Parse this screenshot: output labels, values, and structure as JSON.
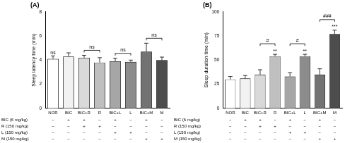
{
  "chart_data": [
    {
      "type": "bar",
      "title": "(A)",
      "ylabel": "Sleep latency time (min)",
      "categories": [
        "NOR",
        "BIC",
        "BIC+R",
        "R",
        "BIC+L",
        "L",
        "BIC+M",
        "M"
      ],
      "values": [
        4.1,
        4.3,
        4.2,
        3.8,
        3.9,
        3.85,
        4.7,
        4.0
      ],
      "errors": [
        0.25,
        0.3,
        0.2,
        0.4,
        0.25,
        0.15,
        0.7,
        0.25
      ],
      "colors": [
        "#ffffff",
        "#f2f2f2",
        "#d9d9d9",
        "#bfbfbf",
        "#a6a6a6",
        "#8c8c8c",
        "#737373",
        "#4d4d4d"
      ],
      "ylim": [
        0,
        8
      ],
      "yticks": [
        0,
        2,
        4,
        6,
        8
      ],
      "grid": false,
      "annotations": [
        {
          "text": "ns",
          "at": "NOR"
        },
        {
          "text": "ns",
          "from": "BIC+R",
          "to": "R"
        },
        {
          "text": "ns",
          "from": "BIC+L",
          "to": "L"
        },
        {
          "text": "ns",
          "from": "BIC+M",
          "to": "M"
        }
      ],
      "treatment_table": [
        {
          "label": "BIC (6 mg/kg)",
          "values": [
            "−",
            "+",
            "+",
            "−",
            "+",
            "−",
            "+",
            "−"
          ]
        },
        {
          "label": "R (150 mg/kg)",
          "values": [
            "−",
            "−",
            "+",
            "+",
            "−",
            "−",
            "−",
            "−"
          ]
        },
        {
          "label": "L (150 mg/kg)",
          "values": [
            "−",
            "−",
            "−",
            "−",
            "+",
            "+",
            "−",
            "−"
          ]
        },
        {
          "label": "M (150 mg/kg)",
          "values": [
            "−",
            "−",
            "−",
            "−",
            "−",
            "−",
            "+",
            "+"
          ]
        }
      ]
    },
    {
      "type": "bar",
      "title": "(B)",
      "ylabel": "Sleep duration time (min)",
      "categories": [
        "NOR",
        "BIC",
        "BIC+R",
        "R",
        "BIC+L",
        "L",
        "BIC+M",
        "M"
      ],
      "values": [
        30,
        31,
        35,
        54,
        33,
        54,
        35,
        77
      ],
      "errors": [
        3,
        3,
        5,
        2,
        4,
        2,
        6,
        4
      ],
      "colors": [
        "#ffffff",
        "#f2f2f2",
        "#d9d9d9",
        "#bfbfbf",
        "#a6a6a6",
        "#8c8c8c",
        "#737373",
        "#4d4d4d"
      ],
      "ylim": [
        0,
        100
      ],
      "yticks": [
        0,
        25,
        50,
        75,
        100
      ],
      "grid": false,
      "annotations": [
        {
          "text": "**",
          "at": "R"
        },
        {
          "text": "**",
          "at": "L"
        },
        {
          "text": "***",
          "at": "M"
        },
        {
          "text": "#",
          "from": "BIC+R",
          "to": "R"
        },
        {
          "text": "#",
          "from": "BIC+L",
          "to": "L"
        },
        {
          "text": "###",
          "from": "BIC+M",
          "to": "M"
        }
      ],
      "treatment_table": [
        {
          "label": "BIC (6 mg/kg)",
          "values": [
            "−",
            "+",
            "+",
            "−",
            "+",
            "−",
            "+",
            "−"
          ]
        },
        {
          "label": "R (150 mg/kg)",
          "values": [
            "−",
            "−",
            "+",
            "+",
            "−",
            "−",
            "−",
            "−"
          ]
        },
        {
          "label": "L (150 mg/kg)",
          "values": [
            "−",
            "−",
            "−",
            "−",
            "+",
            "+",
            "−",
            "−"
          ]
        },
        {
          "label": "M (150 mg/kg)",
          "values": [
            "−",
            "−",
            "−",
            "−",
            "−",
            "−",
            "+",
            "+"
          ]
        }
      ]
    }
  ]
}
